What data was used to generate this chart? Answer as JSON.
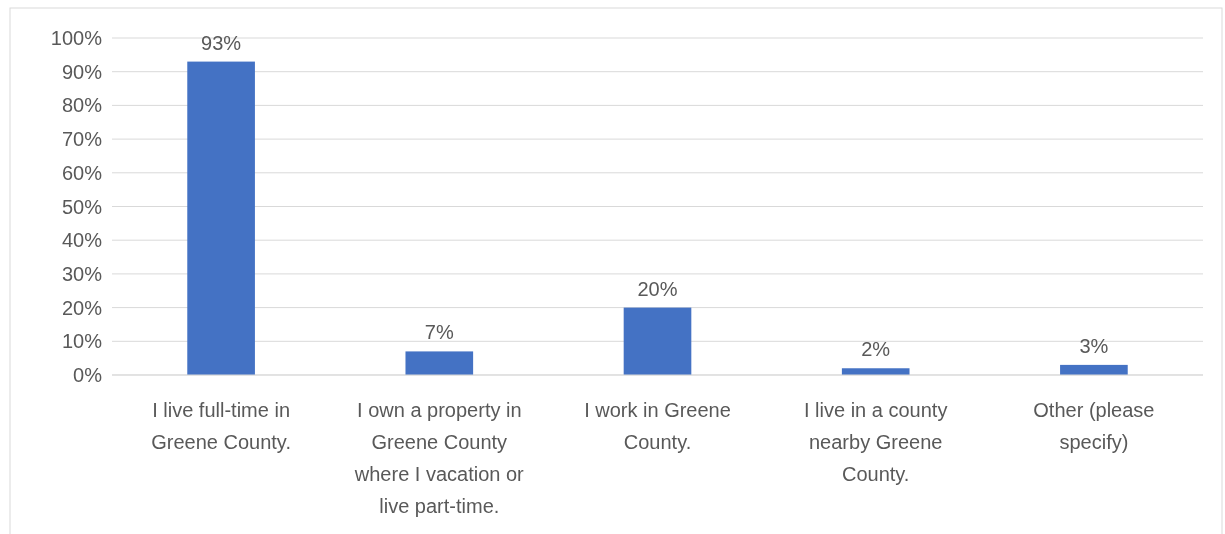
{
  "chart_data": {
    "type": "bar",
    "categories": [
      "I live full-time in Greene County.",
      "I own a property in Greene County where I vacation or live part-time.",
      "I work in Greene County.",
      "I live in a county nearby Greene County.",
      "Other (please specify)"
    ],
    "values": [
      93,
      7,
      20,
      2,
      3
    ],
    "color": "#4472c4",
    "value_labels": [
      "93%",
      "7%",
      "20%",
      "2%",
      "3%"
    ],
    "ylim": [
      0,
      100
    ],
    "yticks": [
      {
        "value": 0,
        "label": "0%"
      },
      {
        "value": 10,
        "label": "10%"
      },
      {
        "value": 20,
        "label": "20%"
      },
      {
        "value": 30,
        "label": "30%"
      },
      {
        "value": 40,
        "label": "40%"
      },
      {
        "value": 50,
        "label": "50%"
      },
      {
        "value": 60,
        "label": "60%"
      },
      {
        "value": 70,
        "label": "70%"
      },
      {
        "value": 80,
        "label": "80%"
      },
      {
        "value": 90,
        "label": "90%"
      },
      {
        "value": 100,
        "label": "100%"
      }
    ],
    "grid": "y"
  }
}
